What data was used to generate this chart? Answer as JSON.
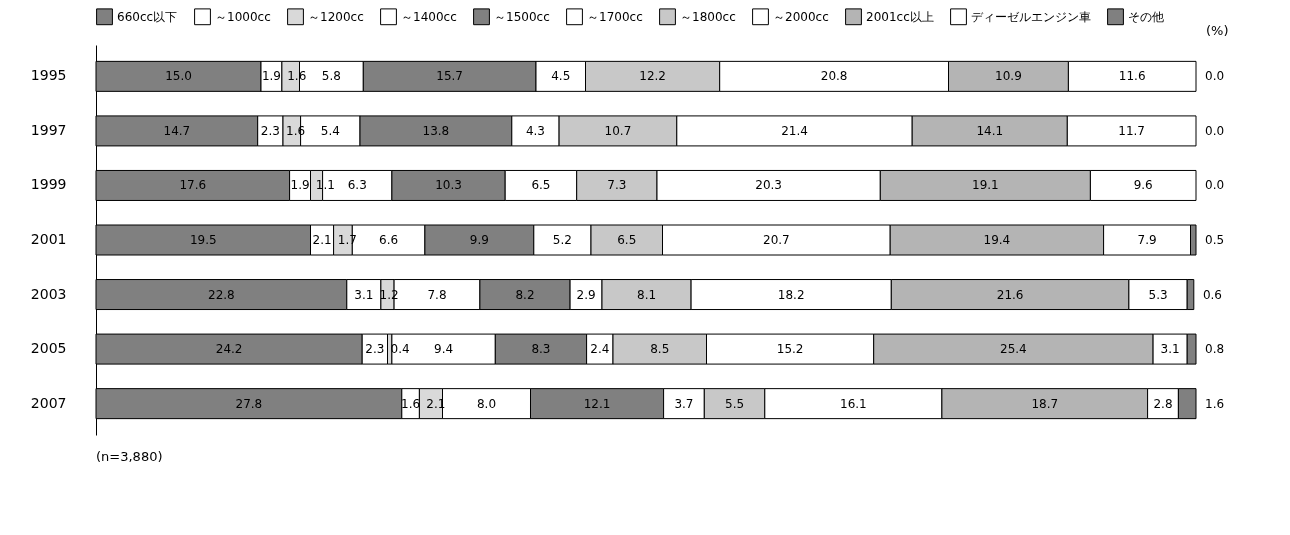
{
  "chart_data": {
    "type": "bar",
    "orientation": "horizontal",
    "stacked": true,
    "legend": "top",
    "tick_labels": "y",
    "xlim": [
      0,
      100
    ],
    "categories": [
      "1995",
      "1997",
      "1999",
      "2001",
      "2003",
      "2005",
      "2007"
    ],
    "series": [
      {
        "name": "660cc以下",
        "color": "#808080",
        "values": [
          15.0,
          14.7,
          17.6,
          19.5,
          22.8,
          24.2,
          27.8
        ],
        "value_labels": [
          "15.0",
          "14.7",
          "17.6",
          "19.5",
          "22.8",
          "24.2",
          "27.8"
        ]
      },
      {
        "name": "～1000cc",
        "color": "#ffffff",
        "values": [
          1.9,
          2.3,
          1.9,
          2.1,
          3.1,
          2.3,
          1.6
        ],
        "value_labels": [
          "1.9",
          "2.3",
          "1.9",
          "2.1",
          "3.1",
          "2.3",
          "1.6"
        ]
      },
      {
        "name": "～1200cc",
        "color": "#d9d9d9",
        "values": [
          1.6,
          1.6,
          1.1,
          1.7,
          1.2,
          0.4,
          2.1
        ],
        "value_labels": [
          "1.6",
          "1.6",
          "1.1",
          "1.7",
          "1.2",
          "0.4",
          "2.1"
        ]
      },
      {
        "name": "～1400cc",
        "color": "#ffffff",
        "values": [
          5.8,
          5.4,
          6.3,
          6.6,
          7.8,
          9.4,
          8.0
        ],
        "value_labels": [
          "5.8",
          "5.4",
          "6.3",
          "6.6",
          "7.8",
          "9.4",
          "8.0"
        ]
      },
      {
        "name": "～1500cc",
        "color": "#808080",
        "values": [
          15.7,
          13.8,
          10.3,
          9.9,
          8.2,
          8.3,
          12.1
        ],
        "value_labels": [
          "15.7",
          "13.8",
          "10.3",
          "9.9",
          "8.2",
          "8.3",
          "12.1"
        ]
      },
      {
        "name": "～1700cc",
        "color": "#ffffff",
        "values": [
          4.5,
          4.3,
          6.5,
          5.2,
          2.9,
          2.4,
          3.7
        ],
        "value_labels": [
          "4.5",
          "4.3",
          "6.5",
          "5.2",
          "2.9",
          "2.4",
          "3.7"
        ]
      },
      {
        "name": "～1800cc",
        "color": "#c8c8c8",
        "values": [
          12.2,
          10.7,
          7.3,
          6.5,
          8.1,
          8.5,
          5.5
        ],
        "value_labels": [
          "12.2",
          "10.7",
          "7.3",
          "6.5",
          "8.1",
          "8.5",
          "5.5"
        ]
      },
      {
        "name": "～2000cc",
        "color": "#ffffff",
        "values": [
          20.8,
          21.4,
          20.3,
          20.7,
          18.2,
          15.2,
          16.1
        ],
        "value_labels": [
          "20.8",
          "21.4",
          "20.3",
          "20.7",
          "18.2",
          "15.2",
          "16.1"
        ]
      },
      {
        "name": "2001cc以上",
        "color": "#b4b4b4",
        "values": [
          10.9,
          14.1,
          19.1,
          19.4,
          21.6,
          25.4,
          18.7
        ],
        "value_labels": [
          "10.9",
          "14.1",
          "19.1",
          "19.4",
          "21.6",
          "25.4",
          "18.7"
        ]
      },
      {
        "name": "ディーゼルエンジン車",
        "color": "#ffffff",
        "values": [
          11.6,
          11.7,
          9.6,
          7.9,
          5.3,
          3.1,
          2.8
        ],
        "value_labels": [
          "11.6",
          "11.7",
          "9.6",
          "7.9",
          "5.3",
          "3.1",
          "2.8"
        ]
      },
      {
        "name": "その他",
        "color": "#808080",
        "values": [
          0.0,
          0.0,
          0.0,
          0.5,
          0.6,
          0.8,
          1.6
        ],
        "value_labels": [
          "0.0",
          "0.0",
          "0.0",
          "0.5",
          "0.6",
          "0.8",
          "1.6"
        ]
      }
    ],
    "annotations": [
      "(%)",
      "(n=3,880)"
    ]
  }
}
